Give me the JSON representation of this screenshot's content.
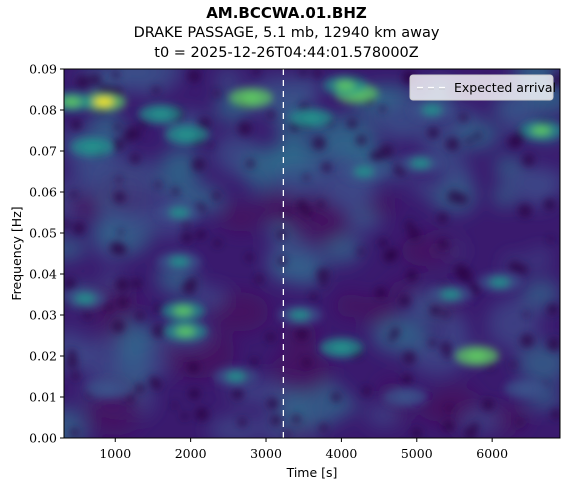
{
  "header": {
    "station": "AM.BCCWA.01.BHZ",
    "event": "DRAKE PASSAGE, 5.1 mb, 12940 km away",
    "origin_time": "t0 = 2025-12-26T04:44:01.578000Z"
  },
  "colormap": [
    "#440154",
    "#3b528b",
    "#21918c",
    "#5ec962",
    "#fde725"
  ],
  "chart_data": {
    "type": "heatmap",
    "xlabel": "Time [s]",
    "ylabel": "Frequency [Hz]",
    "xlim": [
      320,
      6900
    ],
    "ylim": [
      0.0,
      0.09
    ],
    "xticks": [
      1000,
      2000,
      3000,
      4000,
      5000,
      6000
    ],
    "xtick_labels": [
      "1000",
      "2000",
      "3000",
      "4000",
      "5000",
      "6000"
    ],
    "yticks": [
      0.0,
      0.01,
      0.02,
      0.03,
      0.04,
      0.05,
      0.06,
      0.07,
      0.08,
      0.09
    ],
    "ytick_labels": [
      "0.00",
      "0.01",
      "0.02",
      "0.03",
      "0.04",
      "0.05",
      "0.06",
      "0.07",
      "0.08",
      "0.09"
    ],
    "expected_arrival": {
      "label": "Expected arrival",
      "time": 3230
    },
    "legend": {
      "position": "top-right"
    },
    "colormap_name": "viridis",
    "hotspots": [
      {
        "t": 850,
        "f": 0.082,
        "level": 1.0
      },
      {
        "t": 420,
        "f": 0.082,
        "level": 0.7
      },
      {
        "t": 2800,
        "f": 0.083,
        "level": 0.85
      },
      {
        "t": 4200,
        "f": 0.084,
        "level": 0.85
      },
      {
        "t": 4050,
        "f": 0.086,
        "level": 0.75
      },
      {
        "t": 1600,
        "f": 0.079,
        "level": 0.6
      },
      {
        "t": 1950,
        "f": 0.074,
        "level": 0.6
      },
      {
        "t": 6650,
        "f": 0.075,
        "level": 0.75
      },
      {
        "t": 700,
        "f": 0.071,
        "level": 0.5
      },
      {
        "t": 3600,
        "f": 0.078,
        "level": 0.5
      },
      {
        "t": 5200,
        "f": 0.08,
        "level": 0.45
      },
      {
        "t": 1900,
        "f": 0.031,
        "level": 0.65
      },
      {
        "t": 1930,
        "f": 0.026,
        "level": 0.7
      },
      {
        "t": 5800,
        "f": 0.02,
        "level": 0.85
      },
      {
        "t": 4000,
        "f": 0.022,
        "level": 0.55
      },
      {
        "t": 1850,
        "f": 0.055,
        "level": 0.45
      },
      {
        "t": 1850,
        "f": 0.043,
        "level": 0.45
      },
      {
        "t": 600,
        "f": 0.034,
        "level": 0.45
      },
      {
        "t": 3450,
        "f": 0.03,
        "level": 0.45
      },
      {
        "t": 5450,
        "f": 0.035,
        "level": 0.45
      },
      {
        "t": 6100,
        "f": 0.038,
        "level": 0.4
      },
      {
        "t": 4300,
        "f": 0.065,
        "level": 0.45
      },
      {
        "t": 5050,
        "f": 0.067,
        "level": 0.45
      },
      {
        "t": 2600,
        "f": 0.015,
        "level": 0.4
      },
      {
        "t": 900,
        "f": 0.012,
        "level": 0.35
      },
      {
        "t": 4850,
        "f": 0.01,
        "level": 0.35
      },
      {
        "t": 6450,
        "f": 0.012,
        "level": 0.35
      }
    ]
  }
}
